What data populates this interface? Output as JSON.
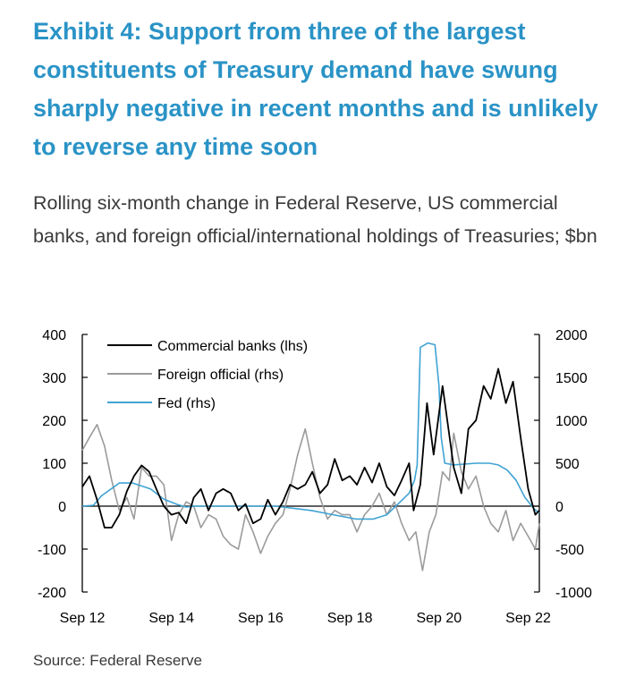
{
  "title": "Exhibit 4: Support from three of the largest constituents of Treasury demand have swung sharply negative in recent months and is unlikely to reverse any time soon",
  "subtitle": "Rolling six-month change in Federal Reserve, US commercial banks, and foreign official/international holdings of Treasuries; $bn",
  "source": "Source: Federal Reserve",
  "colors": {
    "banks": "#000000",
    "foreign": "#9b9b9b",
    "fed": "#3fa3d4",
    "axis": "#000000"
  },
  "chart_data": {
    "type": "line",
    "x_ticks": [
      "Sep 12",
      "Sep 14",
      "Sep 16",
      "Sep 18",
      "Sep 20",
      "Sep 22"
    ],
    "x_tick_values": [
      2012.67,
      2014.67,
      2016.67,
      2018.67,
      2020.67,
      2022.67
    ],
    "xlim": [
      2012.67,
      2022.92
    ],
    "y_left": {
      "label": "lhs",
      "lim": [
        -200,
        400
      ],
      "ticks": [
        400,
        300,
        200,
        100,
        0,
        -100,
        -200
      ]
    },
    "y_right": {
      "label": "rhs",
      "lim": [
        -1000,
        2000
      ],
      "ticks": [
        2000,
        1500,
        1000,
        500,
        0,
        -500,
        -1000
      ]
    },
    "legend": [
      "Commercial banks (lhs)",
      "Foreign official (rhs)",
      "Fed (rhs)"
    ],
    "series": [
      {
        "name": "Commercial banks (lhs)",
        "axis": "left",
        "key": "banks",
        "x": [
          2012.67,
          2012.83,
          2013.0,
          2013.17,
          2013.33,
          2013.5,
          2013.67,
          2013.83,
          2014.0,
          2014.17,
          2014.33,
          2014.5,
          2014.67,
          2014.83,
          2015.0,
          2015.17,
          2015.33,
          2015.5,
          2015.67,
          2015.83,
          2016.0,
          2016.17,
          2016.33,
          2016.5,
          2016.67,
          2016.83,
          2017.0,
          2017.17,
          2017.33,
          2017.5,
          2017.67,
          2017.83,
          2018.0,
          2018.17,
          2018.33,
          2018.5,
          2018.67,
          2018.83,
          2019.0,
          2019.17,
          2019.33,
          2019.5,
          2019.67,
          2019.83,
          2020.0,
          2020.1,
          2020.25,
          2020.4,
          2020.55,
          2020.75,
          2021.0,
          2021.17,
          2021.33,
          2021.5,
          2021.67,
          2021.83,
          2022.0,
          2022.17,
          2022.33,
          2022.5,
          2022.67,
          2022.83,
          2022.92
        ],
        "values": [
          45,
          70,
          15,
          -50,
          -50,
          -20,
          35,
          70,
          95,
          80,
          40,
          0,
          -20,
          -15,
          -40,
          20,
          40,
          -10,
          30,
          40,
          30,
          -10,
          5,
          -40,
          -30,
          15,
          -20,
          10,
          50,
          40,
          50,
          80,
          30,
          50,
          110,
          60,
          70,
          50,
          90,
          55,
          100,
          45,
          25,
          60,
          100,
          -10,
          50,
          240,
          120,
          280,
          90,
          30,
          180,
          200,
          280,
          250,
          320,
          240,
          290,
          160,
          40,
          -20,
          -10
        ]
      },
      {
        "name": "Foreign official (rhs)",
        "axis": "right",
        "key": "foreign",
        "x": [
          2012.67,
          2012.83,
          2013.0,
          2013.17,
          2013.33,
          2013.5,
          2013.67,
          2013.83,
          2014.0,
          2014.17,
          2014.33,
          2014.5,
          2014.67,
          2014.83,
          2015.0,
          2015.17,
          2015.33,
          2015.5,
          2015.67,
          2015.83,
          2016.0,
          2016.17,
          2016.33,
          2016.5,
          2016.67,
          2016.83,
          2017.0,
          2017.17,
          2017.33,
          2017.5,
          2017.67,
          2017.83,
          2018.0,
          2018.17,
          2018.33,
          2018.5,
          2018.67,
          2018.83,
          2019.0,
          2019.17,
          2019.33,
          2019.5,
          2019.67,
          2019.83,
          2020.0,
          2020.15,
          2020.3,
          2020.45,
          2020.6,
          2020.75,
          2020.9,
          2021.0,
          2021.17,
          2021.33,
          2021.5,
          2021.67,
          2021.83,
          2022.0,
          2022.17,
          2022.33,
          2022.5,
          2022.67,
          2022.83,
          2022.92
        ],
        "values": [
          650,
          800,
          950,
          700,
          300,
          -50,
          100,
          -150,
          450,
          350,
          350,
          250,
          -400,
          -100,
          50,
          0,
          -250,
          -100,
          -150,
          -350,
          -450,
          -500,
          -100,
          -300,
          -550,
          -350,
          -200,
          -100,
          200,
          600,
          900,
          500,
          100,
          -150,
          -50,
          -100,
          -100,
          -300,
          -100,
          0,
          150,
          -100,
          50,
          -200,
          -400,
          -300,
          -750,
          -300,
          -100,
          400,
          300,
          850,
          400,
          200,
          350,
          0,
          -200,
          -300,
          -50,
          -400,
          -200,
          -350,
          -500,
          -200
        ]
      },
      {
        "name": "Fed (rhs)",
        "axis": "right",
        "key": "fed",
        "x": [
          2012.67,
          2012.92,
          2013.1,
          2013.5,
          2013.8,
          2014.2,
          2014.5,
          2014.8,
          2015.0,
          2015.2,
          2016.0,
          2017.0,
          2017.8,
          2018.3,
          2018.8,
          2019.2,
          2019.5,
          2019.8,
          2020.0,
          2020.12,
          2020.18,
          2020.25,
          2020.42,
          2020.58,
          2020.67,
          2020.72,
          2020.8,
          2021.0,
          2021.5,
          2021.8,
          2022.0,
          2022.2,
          2022.4,
          2022.6,
          2022.8,
          2022.92
        ],
        "values": [
          0,
          10,
          120,
          270,
          270,
          200,
          80,
          20,
          -10,
          0,
          0,
          0,
          -50,
          -100,
          -150,
          -150,
          -100,
          50,
          150,
          300,
          480,
          1850,
          1900,
          1880,
          1400,
          800,
          500,
          480,
          500,
          500,
          480,
          420,
          300,
          100,
          -30,
          -80
        ]
      }
    ]
  }
}
